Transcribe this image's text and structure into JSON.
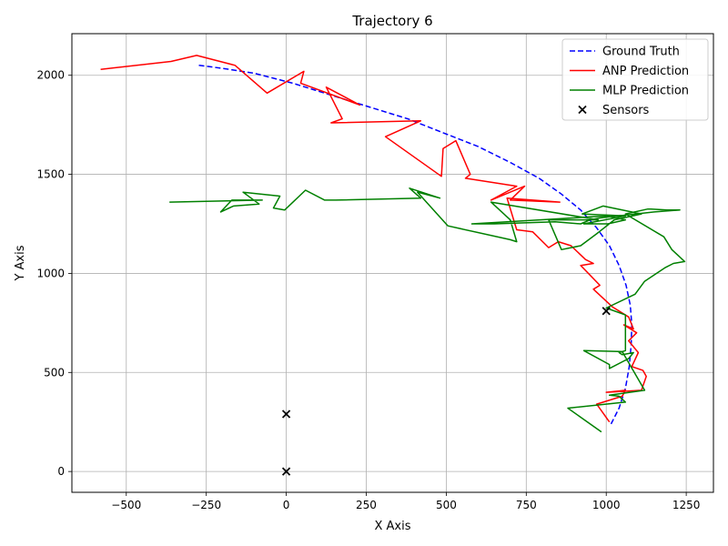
{
  "chart_data": {
    "type": "line",
    "title": "Trajectory 6",
    "xlabel": "X Axis",
    "ylabel": "Y Axis",
    "xlim": [
      -670,
      1335
    ],
    "ylim": [
      -105,
      2210
    ],
    "xticks": [
      -500,
      -250,
      0,
      250,
      500,
      750,
      1000,
      1250
    ],
    "yticks": [
      0,
      500,
      1000,
      1500,
      2000
    ],
    "xtick_labels": [
      "−500",
      "−250",
      "0",
      "250",
      "500",
      "750",
      "1000",
      "1250"
    ],
    "ytick_labels": [
      "0",
      "500",
      "1000",
      "1500",
      "2000"
    ],
    "grid": true,
    "legend_position": "top-right",
    "series": [
      {
        "name": "Ground Truth",
        "style": "dashed",
        "color": "#0000ff",
        "x": [
          1015,
          1040,
          1060,
          1072,
          1078,
          1080,
          1075,
          1062,
          1040,
          1010,
          970,
          920,
          860,
          790,
          700,
          600,
          490,
          380,
          260,
          140,
          20,
          -100,
          -200,
          -280
        ],
        "y": [
          240,
          320,
          420,
          530,
          640,
          740,
          840,
          940,
          1040,
          1140,
          1230,
          1320,
          1400,
          1480,
          1560,
          1640,
          1710,
          1780,
          1840,
          1900,
          1960,
          2010,
          2035,
          2052
        ]
      },
      {
        "name": "ANP Prediction",
        "style": "solid",
        "color": "#ff0000",
        "x": [
          1010,
          970,
          1050,
          1060,
          1000,
          1110,
          1125,
          1115,
          1080,
          1100,
          1070,
          1095,
          1055,
          1085,
          1070,
          1020,
          960,
          980,
          920,
          960,
          935,
          890,
          850,
          820,
          770,
          720,
          690,
          855,
          700,
          745,
          640,
          720,
          560,
          575,
          530,
          490,
          485,
          310,
          420,
          140,
          175,
          125,
          230,
          45,
          55,
          -60,
          -160,
          -280,
          -360,
          -580
        ],
        "y": [
          250,
          340,
          380,
          410,
          400,
          410,
          480,
          510,
          530,
          600,
          660,
          700,
          740,
          720,
          780,
          830,
          920,
          940,
          1040,
          1050,
          1070,
          1140,
          1160,
          1130,
          1210,
          1220,
          1380,
          1360,
          1370,
          1440,
          1370,
          1440,
          1480,
          1500,
          1670,
          1630,
          1490,
          1690,
          1770,
          1760,
          1780,
          1940,
          1850,
          1960,
          2020,
          1910,
          2050,
          2100,
          2070,
          2030
        ]
      },
      {
        "name": "MLP Prediction",
        "style": "solid",
        "color": "#008000",
        "x": [
          985,
          880,
          1060,
          1040,
          1010,
          1120,
          1050,
          930,
          1010,
          1010,
          1070,
          1085,
          1050,
          1040,
          1060,
          1060,
          1000,
          1090,
          1120,
          1185,
          1210,
          1245,
          1205,
          1180,
          1060,
          1130,
          1140,
          1190,
          1230,
          1150,
          980,
          950,
          920,
          840,
          650,
          580,
          1000,
          1060,
          1005,
          930,
          1060,
          925,
          990,
          1110,
          1025,
          970,
          920,
          860,
          820,
          975,
          640,
          700,
          720,
          700,
          505,
          410,
          480,
          385,
          420,
          155,
          120,
          60,
          -5,
          -40,
          -20,
          -135,
          -85,
          -165,
          -205,
          -170,
          -75,
          -365
        ],
        "y": [
          200,
          320,
          350,
          380,
          385,
          410,
          605,
          610,
          540,
          520,
          570,
          600,
          590,
          600,
          610,
          790,
          825,
          895,
          960,
          1030,
          1050,
          1060,
          1120,
          1185,
          1300,
          1325,
          1325,
          1320,
          1320,
          1310,
          1280,
          1270,
          1250,
          1260,
          1250,
          1250,
          1290,
          1270,
          1250,
          1250,
          1290,
          1300,
          1340,
          1300,
          1270,
          1200,
          1140,
          1120,
          1270,
          1270,
          1360,
          1270,
          1160,
          1170,
          1240,
          1410,
          1380,
          1430,
          1380,
          1370,
          1370,
          1420,
          1320,
          1330,
          1390,
          1410,
          1350,
          1340,
          1310,
          1370,
          1370,
          1360
        ]
      },
      {
        "name": "Sensors",
        "style": "marker-x",
        "color": "#000000",
        "x": [
          0,
          0,
          1000
        ],
        "y": [
          0,
          290,
          810
        ]
      }
    ]
  }
}
